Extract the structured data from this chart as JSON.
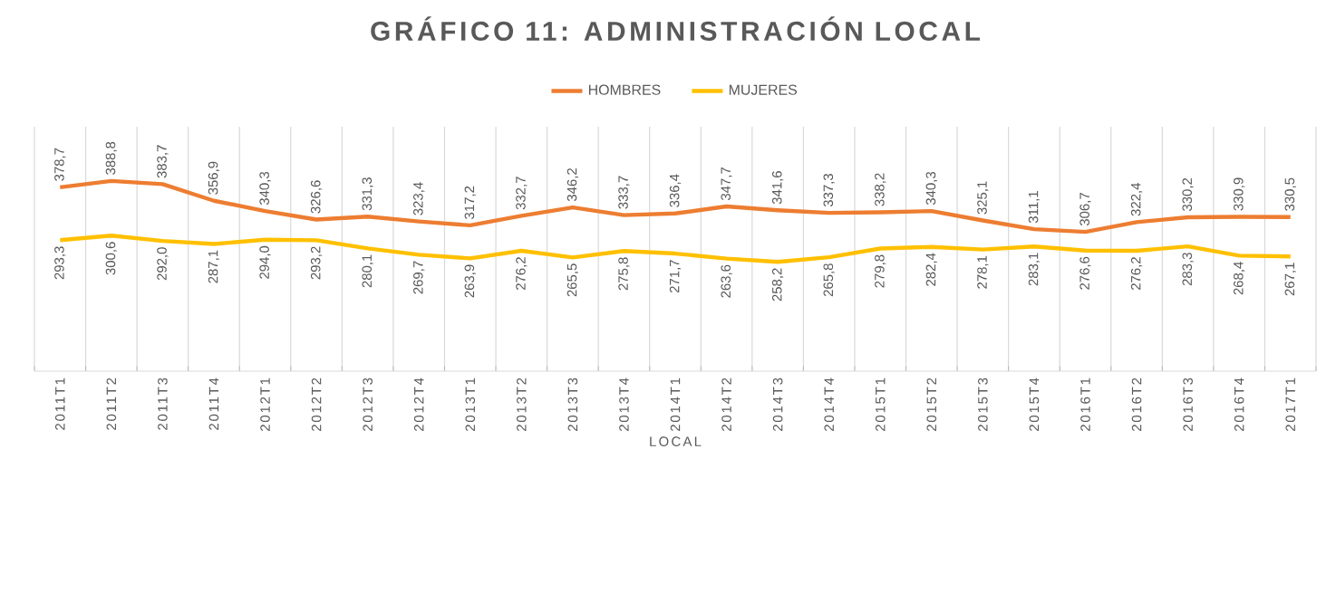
{
  "chart_data": {
    "type": "line",
    "title": "GRÁFICO 11: ADMINISTRACIÓN LOCAL",
    "xlabel": "LOCAL",
    "legend": "top",
    "grid": "x",
    "categories": [
      "2011T1",
      "2011T2",
      "2011T3",
      "2011T4",
      "2012T1",
      "2012T2",
      "2012T3",
      "2012T4",
      "2013T1",
      "2013T2",
      "2013T3",
      "2013T4",
      "2014T1",
      "2014T2",
      "2014T3",
      "2014T4",
      "2015T1",
      "2015T2",
      "2015T3",
      "2015T4",
      "2016T1",
      "2016T2",
      "2016T3",
      "2016T4",
      "2017T1"
    ],
    "series": [
      {
        "name": "HOMBRES",
        "color": "#ed7d31",
        "values": [
          378.7,
          388.8,
          383.7,
          356.9,
          340.3,
          326.6,
          331.3,
          323.4,
          317.2,
          332.7,
          346.2,
          333.7,
          336.4,
          347.7,
          341.6,
          337.3,
          338.2,
          340.3,
          325.1,
          311.1,
          306.7,
          322.4,
          330.2,
          330.9,
          330.5
        ],
        "value_labels": [
          "378,7",
          "388,8",
          "383,7",
          "356,9",
          "340,3",
          "326,6",
          "331,3",
          "323,4",
          "317,2",
          "332,7",
          "346,2",
          "333,7",
          "336,4",
          "347,7",
          "341,6",
          "337,3",
          "338,2",
          "340,3",
          "325,1",
          "311,1",
          "306,7",
          "322,4",
          "330,2",
          "330,9",
          "330,5"
        ]
      },
      {
        "name": "MUJERES",
        "color": "#ffc000",
        "values": [
          293.3,
          300.6,
          292.0,
          287.1,
          294.0,
          293.2,
          280.1,
          269.7,
          263.9,
          276.2,
          265.5,
          275.8,
          271.7,
          263.6,
          258.2,
          265.8,
          279.8,
          282.4,
          278.1,
          283.1,
          276.6,
          276.2,
          283.3,
          268.4,
          267.1
        ],
        "value_labels": [
          "293,3",
          "300,6",
          "292,0",
          "287,1",
          "294,0",
          "293,2",
          "280,1",
          "269,7",
          "263,9",
          "276,2",
          "265,5",
          "275,8",
          "271,7",
          "263,6",
          "258,2",
          "265,8",
          "279,8",
          "282,4",
          "278,1",
          "283,1",
          "276,6",
          "276,2",
          "283,3",
          "268,4",
          "267,1"
        ]
      }
    ]
  }
}
